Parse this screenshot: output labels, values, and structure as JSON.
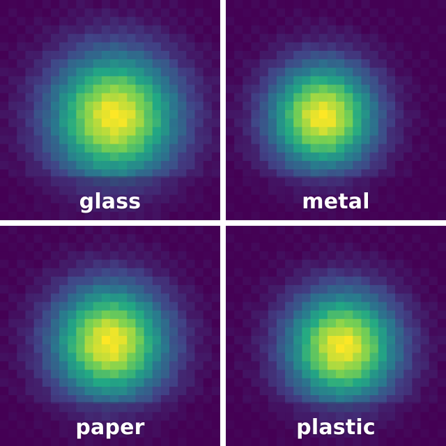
{
  "chart_data": {
    "type": "heatmap",
    "panels": [
      {
        "label": "glass",
        "center_x": 0.52,
        "center_y": 0.53,
        "spread": 0.58,
        "peak": 1.0
      },
      {
        "label": "metal",
        "center_x": 0.44,
        "center_y": 0.53,
        "spread": 0.48,
        "peak": 1.0
      },
      {
        "label": "paper",
        "center_x": 0.5,
        "center_y": 0.53,
        "spread": 0.52,
        "peak": 1.0
      },
      {
        "label": "plastic",
        "center_x": 0.53,
        "center_y": 0.55,
        "spread": 0.5,
        "peak": 1.0
      }
    ],
    "colormap": "viridis"
  },
  "colors": {
    "viridis": [
      "#440154",
      "#414487",
      "#2a788e",
      "#22a884",
      "#7ad151",
      "#fde725"
    ],
    "background": "#440154",
    "label": "#ffffff"
  }
}
